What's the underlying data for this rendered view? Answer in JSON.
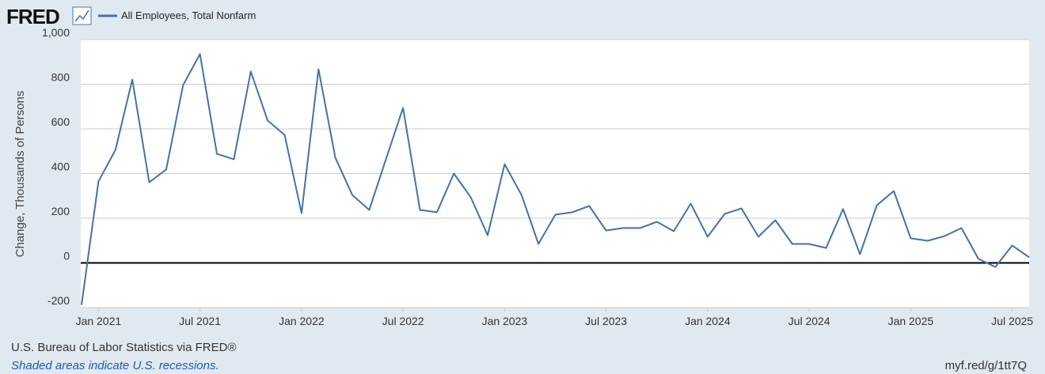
{
  "header": {
    "logo": "FRED"
  },
  "chart_data": {
    "type": "line",
    "ylabel": "Change, Thousands of Persons",
    "x": [
      "2020-12",
      "2021-01",
      "2021-02",
      "2021-03",
      "2021-04",
      "2021-05",
      "2021-06",
      "2021-07",
      "2021-08",
      "2021-09",
      "2021-10",
      "2021-11",
      "2021-12",
      "2022-01",
      "2022-02",
      "2022-03",
      "2022-04",
      "2022-05",
      "2022-06",
      "2022-07",
      "2022-08",
      "2022-09",
      "2022-10",
      "2022-11",
      "2022-12",
      "2023-01",
      "2023-02",
      "2023-03",
      "2023-04",
      "2023-05",
      "2023-06",
      "2023-07",
      "2023-08",
      "2023-09",
      "2023-10",
      "2023-11",
      "2023-12",
      "2024-01",
      "2024-02",
      "2024-03",
      "2024-04",
      "2024-05",
      "2024-06",
      "2024-07",
      "2024-08",
      "2024-09",
      "2024-10",
      "2024-11",
      "2024-12",
      "2025-01",
      "2025-02",
      "2025-03",
      "2025-04",
      "2025-05",
      "2025-06",
      "2025-07",
      "2025-08"
    ],
    "series": [
      {
        "name": "All Employees, Total Nonfarm",
        "color": "#4572a7",
        "values": [
          -188,
          365,
          506,
          821,
          361,
          418,
          796,
          935,
          488,
          464,
          857,
          637,
          573,
          223,
          867,
          471,
          304,
          237,
          467,
          694,
          237,
          227,
          400,
          294,
          124,
          442,
          304,
          85,
          216,
          227,
          255,
          145,
          156,
          156,
          184,
          142,
          265,
          117,
          219,
          244,
          117,
          191,
          85,
          85,
          67,
          241,
          39,
          258,
          322,
          110,
          99,
          120,
          156,
          18,
          -18,
          78,
          25
        ]
      }
    ],
    "xlim": [
      "2020-12",
      "2025-08"
    ],
    "xticks": [
      {
        "value": "2021-01",
        "label": "Jan 2021"
      },
      {
        "value": "2021-07",
        "label": "Jul 2021"
      },
      {
        "value": "2022-01",
        "label": "Jan 2022"
      },
      {
        "value": "2022-07",
        "label": "Jul 2022"
      },
      {
        "value": "2023-01",
        "label": "Jan 2023"
      },
      {
        "value": "2023-07",
        "label": "Jul 2023"
      },
      {
        "value": "2024-01",
        "label": "Jan 2024"
      },
      {
        "value": "2024-07",
        "label": "Jul 2024"
      },
      {
        "value": "2025-01",
        "label": "Jan 2025"
      },
      {
        "value": "2025-07",
        "label": "Jul 2025"
      }
    ],
    "ylim": [
      -200,
      1000
    ],
    "yticks": [
      -200,
      0,
      200,
      400,
      600,
      800,
      {
        "value": 1000,
        "label": "1,000"
      }
    ],
    "grid": true
  },
  "footer": {
    "source": "U.S. Bureau of Labor Statistics via FRED®",
    "note": "Shaded areas indicate U.S. recessions.",
    "link": "myf.red/g/1tt7Q"
  }
}
